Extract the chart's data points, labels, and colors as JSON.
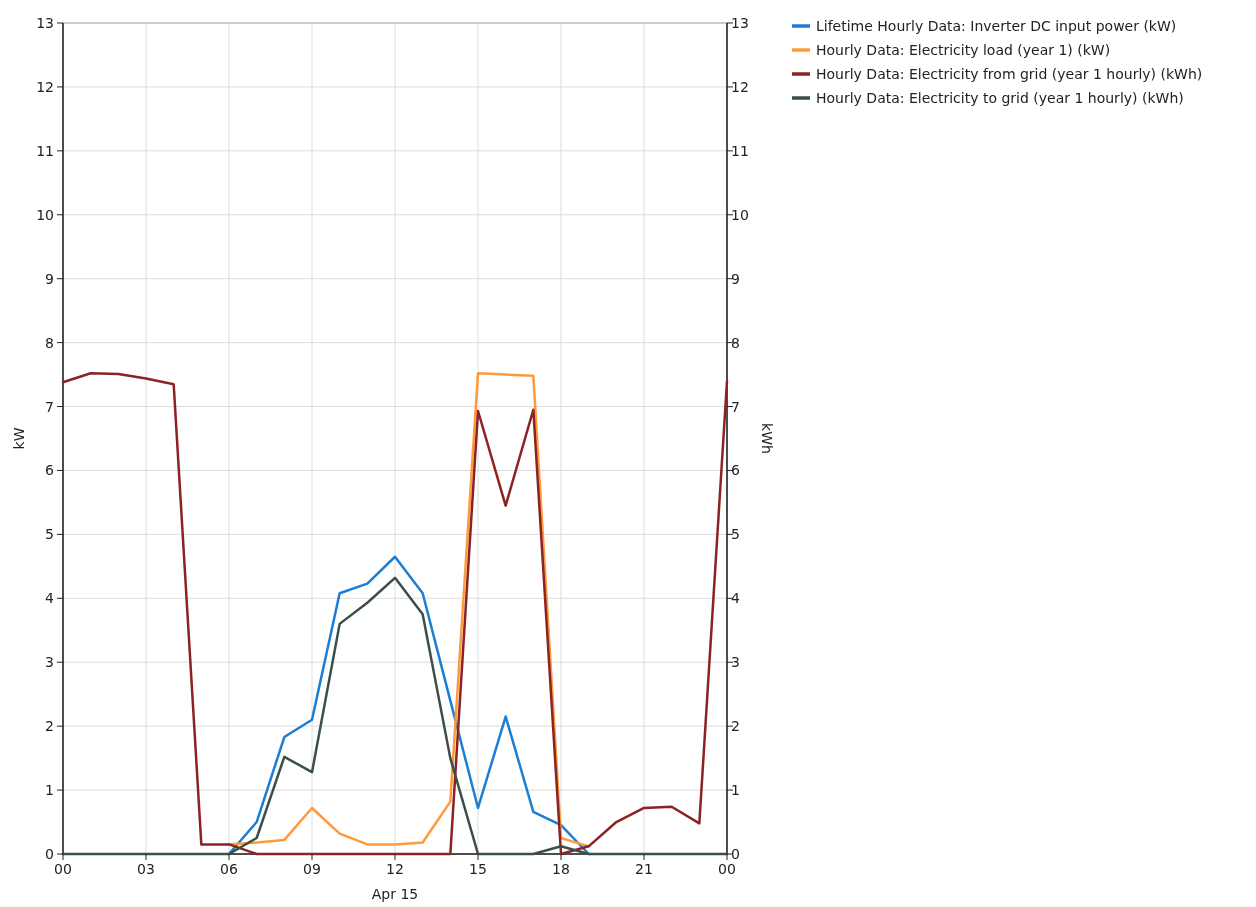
{
  "chart_data": {
    "type": "line",
    "xlabel": "Apr 15",
    "ylabel": "kW",
    "y2label": "kWh",
    "x": [
      0,
      1,
      2,
      3,
      4,
      5,
      6,
      7,
      8,
      9,
      10,
      11,
      12,
      13,
      14,
      15,
      16,
      17,
      18,
      19,
      20,
      21,
      22,
      23,
      24
    ],
    "xlim": [
      0,
      24
    ],
    "xticks": [
      {
        "value": 0,
        "label": "00"
      },
      {
        "value": 3,
        "label": "03"
      },
      {
        "value": 6,
        "label": "06"
      },
      {
        "value": 9,
        "label": "09"
      },
      {
        "value": 12,
        "label": "12"
      },
      {
        "value": 15,
        "label": "15"
      },
      {
        "value": 18,
        "label": "18"
      },
      {
        "value": 21,
        "label": "21"
      },
      {
        "value": 24,
        "label": "00"
      }
    ],
    "ylim": [
      0,
      13
    ],
    "yticks": [
      0,
      1,
      2,
      3,
      4,
      5,
      6,
      7,
      8,
      9,
      10,
      11,
      12,
      13
    ],
    "y2lim": [
      0,
      13
    ],
    "y2ticks": [
      0,
      1,
      2,
      3,
      4,
      5,
      6,
      7,
      8,
      9,
      10,
      11,
      12,
      13
    ],
    "grid": true,
    "legend": "top right",
    "line_style": "solid",
    "marker": "none",
    "series": [
      {
        "name": "Lifetime Hourly Data: Inverter DC input power (kW)",
        "color": "#1a7fd4",
        "values": [
          null,
          null,
          null,
          null,
          null,
          null,
          0,
          0.5,
          1.83,
          2.1,
          4.08,
          4.23,
          4.65,
          4.08,
          2.4,
          0.72,
          2.15,
          0.66,
          0.45,
          0,
          null,
          null,
          null,
          null,
          null
        ]
      },
      {
        "name": "Hourly Data: Electricity load (year 1) (kW)",
        "color": "#ff9a3c",
        "values": [
          null,
          null,
          null,
          null,
          null,
          null,
          0.15,
          0.18,
          0.22,
          0.72,
          0.32,
          0.15,
          0.15,
          0.18,
          0.82,
          7.52,
          7.5,
          7.48,
          0.25,
          0.12,
          null,
          null,
          null,
          null,
          null
        ]
      },
      {
        "name": "Hourly Data: Electricity from grid (year 1 hourly) (kWh)",
        "color": "#8b2323",
        "values": [
          7.38,
          7.52,
          7.51,
          7.44,
          7.35,
          0.15,
          0.15,
          0,
          0,
          0,
          0,
          0,
          0,
          0,
          0,
          6.93,
          5.45,
          6.95,
          0,
          0.12,
          0.5,
          0.72,
          0.74,
          0.48,
          7.4
        ]
      },
      {
        "name": "Hourly Data: Electricity to grid (year 1 hourly) (kWh)",
        "color": "#3a4f4a",
        "values": [
          0,
          0,
          0,
          0,
          0,
          0,
          0,
          0.25,
          1.52,
          1.28,
          3.6,
          3.93,
          4.32,
          3.75,
          1.5,
          0,
          0,
          0,
          0.12,
          0,
          0,
          0,
          0,
          0,
          0
        ]
      }
    ]
  }
}
